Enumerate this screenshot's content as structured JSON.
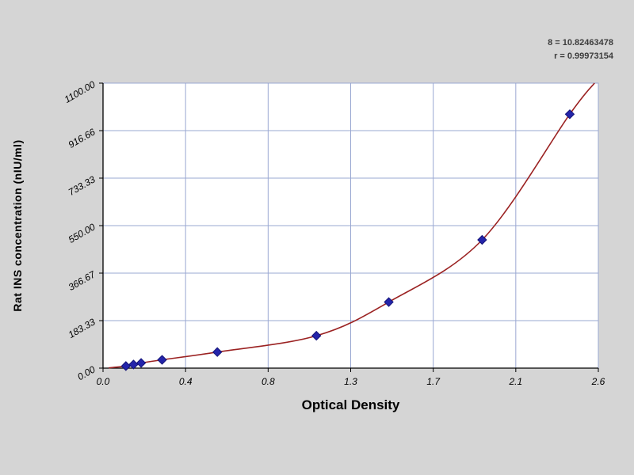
{
  "background_color": "#d5d5d5",
  "plot_bg": "#ffffff",
  "annotation": {
    "line1": "8 = 10.82463478",
    "line2": "r = 0.99973154"
  },
  "chart_data": {
    "type": "scatter",
    "title": "",
    "xlabel": "Optical Density",
    "ylabel": "Rat INS concentration (nIU/ml)",
    "xlim": [
      0,
      2.6
    ],
    "ylim": [
      0,
      1100
    ],
    "x_tick_labels": [
      "0.0",
      "0.4",
      "0.8",
      "1.3",
      "1.7",
      "2.1",
      "2.6"
    ],
    "y_tick_labels": [
      "0.00",
      "183.33",
      "366.67",
      "550.00",
      "733.33",
      "916.66",
      "1100.00"
    ],
    "grid": true,
    "legend_position": "none",
    "grid_color": "#9aa8d2",
    "axis_color": "#000000",
    "series": [
      {
        "name": "standard-points",
        "marker": "diamond",
        "color": "#2424aa",
        "x": [
          0.12,
          0.16,
          0.2,
          0.31,
          0.6,
          1.12,
          1.5,
          1.99,
          2.45
        ],
        "y": [
          8,
          14,
          20,
          32,
          62,
          125,
          255,
          495,
          980
        ]
      }
    ],
    "fit_curve": {
      "name": "regression-curve",
      "color": "#9b2222",
      "x": [
        0.03,
        0.12,
        0.16,
        0.2,
        0.31,
        0.6,
        1.12,
        1.5,
        1.99,
        2.45,
        2.58
      ],
      "y": [
        1,
        8,
        14,
        20,
        32,
        62,
        125,
        255,
        495,
        980,
        1100
      ]
    }
  }
}
